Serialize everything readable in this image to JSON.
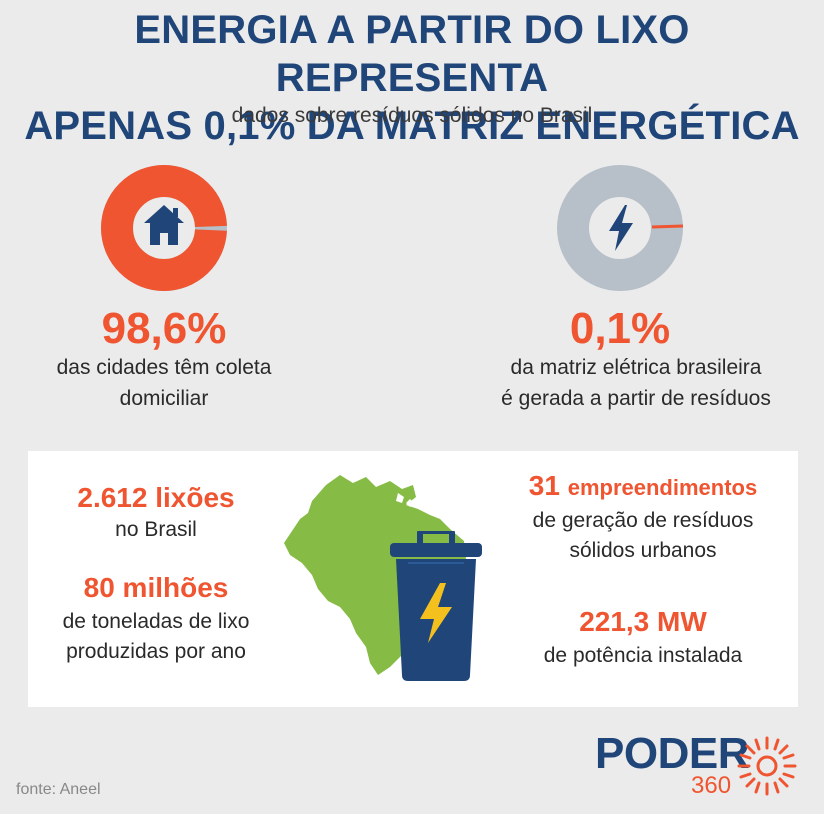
{
  "header": {
    "title_line1": "ENERGIA A PARTIR DO LIXO REPRESENTA",
    "title_line2": "APENAS 0,1% DA MATRIZ ENERGÉTICA",
    "subtitle": "dados sobre resíduos sólidos no Brasil"
  },
  "left_stat": {
    "value": "98,6%",
    "caption_line1": "das cidades têm coleta",
    "caption_line2": "domiciliar",
    "icon": "house-icon",
    "fraction": 0.986,
    "color": "#ef5530"
  },
  "right_stat": {
    "value": "0,1%",
    "caption_line1": "da matriz elétrica brasileira",
    "caption_line2": "é gerada a partir de resíduos",
    "icon": "lightning-icon",
    "fraction": 0.001,
    "color": "#b7c0c9"
  },
  "panel": {
    "dumps_value": "2.612 lixões",
    "dumps_label": "no Brasil",
    "tons_value": "80 milhões",
    "tons_label_line1": "de toneladas de lixo",
    "tons_label_line2": "produzidas por ano",
    "projects_value": "31",
    "projects_value_word": "empreendimentos",
    "projects_label_line1": "de geração de resíduos",
    "projects_label_line2": "sólidos urbanos",
    "power_value": "221,3 MW",
    "power_label": "de potência instalada",
    "map_icon": "brazil-map-icon",
    "bin_icon": "trash-bin-lightning-icon"
  },
  "footer": {
    "source": "fonte: Aneel",
    "logo_main": "PODER",
    "logo_sub": "360"
  },
  "colors": {
    "navy": "#1f4579",
    "orange": "#ef5530",
    "gray_ring": "#b7c0c9",
    "green_map": "#86bc45"
  }
}
